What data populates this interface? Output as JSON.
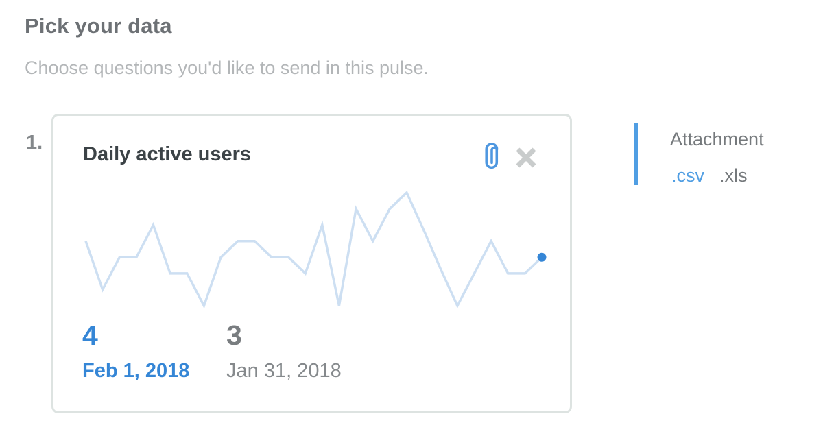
{
  "page": {
    "title": "Pick your data",
    "subtitle": "Choose questions you'd like to send in this pulse."
  },
  "card": {
    "index_label": "1.",
    "title": "Daily active users",
    "attach_icon": "paperclip-icon",
    "remove_icon": "close-icon",
    "metrics": {
      "current": {
        "value": "4",
        "date": "Feb 1, 2018"
      },
      "previous": {
        "value": "3",
        "date": "Jan 31, 2018"
      }
    }
  },
  "attachment_panel": {
    "title": "Attachment",
    "formats": [
      {
        "label": ".csv",
        "selected": true
      },
      {
        "label": ".xls",
        "selected": false
      }
    ]
  },
  "colors": {
    "brand_blue": "#509ee3",
    "metric_blue": "#3586d6",
    "sparkline_blue": "#cddff2",
    "dot_blue": "#3586d6",
    "heading_gray": "#6d7175",
    "subtitle_gray": "#b3b6b8",
    "card_border": "#dde3e1"
  },
  "chart_data": {
    "type": "line",
    "title": "Daily active users",
    "x_description": "daily values ending Feb 1, 2018",
    "values": [
      5,
      2,
      4,
      4,
      6,
      3,
      3,
      1,
      4,
      5,
      5,
      4,
      4,
      3,
      6,
      1,
      7,
      5,
      7,
      8,
      5.7,
      3.3,
      1,
      3,
      5,
      3,
      3,
      4
    ],
    "ylim": [
      1,
      8
    ],
    "grid": false,
    "legend": false,
    "last_point": {
      "value": 4,
      "label": "Feb 1, 2018"
    },
    "previous_point": {
      "value": 3,
      "label": "Jan 31, 2018"
    },
    "line_color": "#cddff2",
    "dot_color": "#3586d6"
  }
}
